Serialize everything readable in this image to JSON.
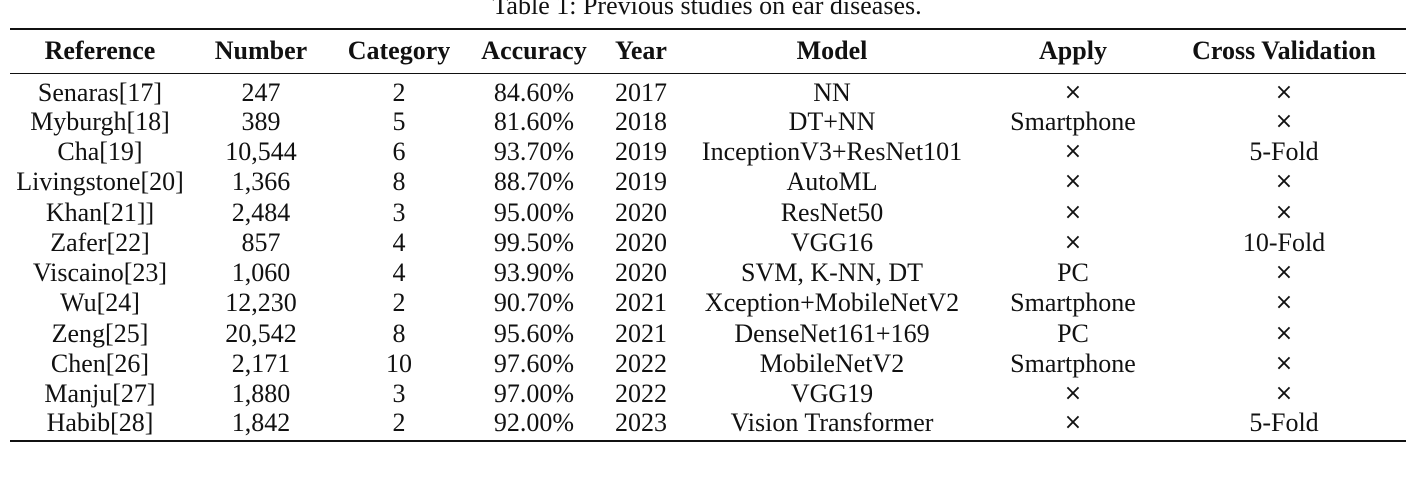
{
  "caption": "Table 1: Previous studies on ear diseases.",
  "table": {
    "headers": [
      "Reference",
      "Number",
      "Category",
      "Accuracy",
      "Year",
      "Model",
      "Apply",
      "Cross Validation"
    ],
    "rows": [
      [
        "Senaras[17]",
        "247",
        "2",
        "84.60%",
        "2017",
        "NN",
        "×",
        "×"
      ],
      [
        "Myburgh[18]",
        "389",
        "5",
        "81.60%",
        "2018",
        "DT+NN",
        "Smartphone",
        "×"
      ],
      [
        "Cha[19]",
        "10,544",
        "6",
        "93.70%",
        "2019",
        "InceptionV3+ResNet101",
        "×",
        "5-Fold"
      ],
      [
        "Livingstone[20]",
        "1,366",
        "8",
        "88.70%",
        "2019",
        "AutoML",
        "×",
        "×"
      ],
      [
        "Khan[21]]",
        "2,484",
        "3",
        "95.00%",
        "2020",
        "ResNet50",
        "×",
        "×"
      ],
      [
        "Zafer[22]",
        "857",
        "4",
        "99.50%",
        "2020",
        "VGG16",
        "×",
        "10-Fold"
      ],
      [
        "Viscaino[23]",
        "1,060",
        "4",
        "93.90%",
        "2020",
        "SVM, K-NN, DT",
        "PC",
        "×"
      ],
      [
        "Wu[24]",
        "12,230",
        "2",
        "90.70%",
        "2021",
        "Xception+MobileNetV2",
        "Smartphone",
        "×"
      ],
      [
        "Zeng[25]",
        "20,542",
        "8",
        "95.60%",
        "2021",
        "DenseNet161+169",
        "PC",
        "×"
      ],
      [
        "Chen[26]",
        "2,171",
        "10",
        "97.60%",
        "2022",
        "MobileNetV2",
        "Smartphone",
        "×"
      ],
      [
        "Manju[27]",
        "1,880",
        "3",
        "97.00%",
        "2022",
        "VGG19",
        "×",
        "×"
      ],
      [
        "Habib[28]",
        "1,842",
        "2",
        "92.00%",
        "2023",
        "Vision Transformer",
        "×",
        "5-Fold"
      ]
    ]
  }
}
